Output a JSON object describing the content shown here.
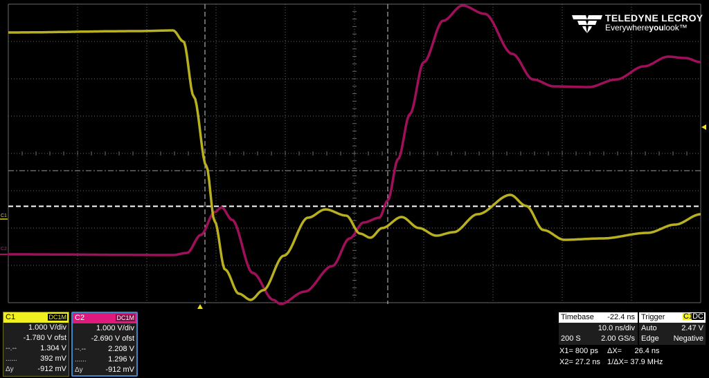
{
  "brand": {
    "name": "TELEDYNE LECROY",
    "tag_pre": "Everywhere",
    "tag_bold": "you",
    "tag_post": "look",
    "tm": "™"
  },
  "colors": {
    "c1": "#b8b020",
    "c2": "#a0105a",
    "grid": "#6a6a6a"
  },
  "markers": {
    "c1": "C1",
    "c2": "C2"
  },
  "channels": [
    {
      "name": "C1",
      "coupling": "DC1M",
      "vdiv": "1.000 V/div",
      "offset": "-1.780 V ofst",
      "cursor1_label": "--.--",
      "cursor1": "1.304 V",
      "cursor2_label": "......",
      "cursor2": "392 mV",
      "dy_label": "Δy",
      "dy": "-912 mV"
    },
    {
      "name": "C2",
      "coupling": "DC1M",
      "vdiv": "1.000 V/div",
      "offset": "-2.690 V ofst",
      "cursor1_label": "--.--",
      "cursor1": "2.208 V",
      "cursor2_label": "......",
      "cursor2": "1.296 V",
      "dy_label": "Δy",
      "dy": "-912 mV"
    }
  ],
  "timebase": {
    "label": "Timebase",
    "delay": "-22.4 ns",
    "tdiv": "10.0 ns/div",
    "samples": "200 S",
    "rate": "2.00 GS/s"
  },
  "trigger": {
    "label": "Trigger",
    "channel": "C1",
    "coupling": "DC",
    "mode": "Auto",
    "level": "2.47 V",
    "type": "Edge",
    "slope": "Negative"
  },
  "cursors": {
    "x1": "X1= 800 ps",
    "dx": "ΔX=      26.4 ns",
    "x2": "X2= 27.2 ns",
    "inv_dx": "1/ΔX= 37.9 MHz"
  }
}
